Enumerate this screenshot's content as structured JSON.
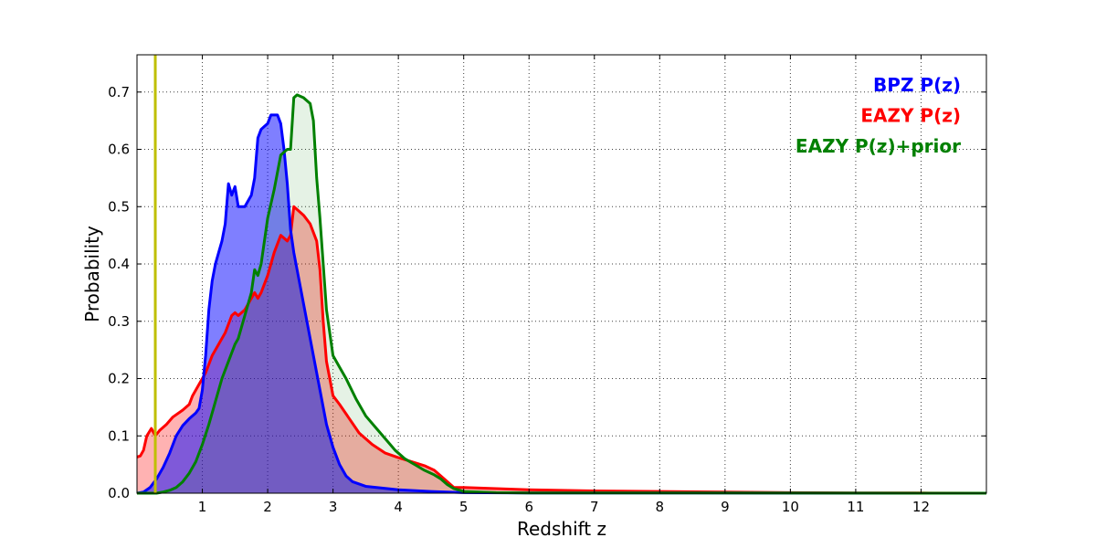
{
  "chart_data": {
    "type": "area",
    "xlabel": "Redshift z",
    "ylabel": "Probability",
    "xlim": [
      0,
      13
    ],
    "ylim": [
      0,
      0.765
    ],
    "xticks": [
      1,
      2,
      3,
      4,
      5,
      6,
      7,
      8,
      9,
      10,
      11,
      12
    ],
    "yticks": [
      0.0,
      0.1,
      0.2,
      0.3,
      0.4,
      0.5,
      0.6,
      0.7
    ],
    "grid": true,
    "legend_position": "top-right",
    "marker_line": {
      "x": 0.28,
      "color": "#bfbf00"
    },
    "series": [
      {
        "name": "BPZ P(z)",
        "color": "#0000ff",
        "fill_opacity": 0.5,
        "points": [
          [
            0.0,
            0.0
          ],
          [
            0.1,
            0.002
          ],
          [
            0.2,
            0.01
          ],
          [
            0.3,
            0.025
          ],
          [
            0.4,
            0.045
          ],
          [
            0.5,
            0.07
          ],
          [
            0.6,
            0.1
          ],
          [
            0.7,
            0.118
          ],
          [
            0.8,
            0.13
          ],
          [
            0.9,
            0.14
          ],
          [
            0.95,
            0.148
          ],
          [
            1.0,
            0.18
          ],
          [
            1.05,
            0.24
          ],
          [
            1.1,
            0.32
          ],
          [
            1.15,
            0.37
          ],
          [
            1.2,
            0.4
          ],
          [
            1.25,
            0.42
          ],
          [
            1.3,
            0.44
          ],
          [
            1.35,
            0.47
          ],
          [
            1.4,
            0.54
          ],
          [
            1.45,
            0.52
          ],
          [
            1.5,
            0.535
          ],
          [
            1.55,
            0.5
          ],
          [
            1.6,
            0.5
          ],
          [
            1.65,
            0.5
          ],
          [
            1.7,
            0.51
          ],
          [
            1.75,
            0.52
          ],
          [
            1.8,
            0.55
          ],
          [
            1.85,
            0.62
          ],
          [
            1.9,
            0.635
          ],
          [
            1.95,
            0.64
          ],
          [
            2.0,
            0.645
          ],
          [
            2.05,
            0.66
          ],
          [
            2.1,
            0.66
          ],
          [
            2.15,
            0.66
          ],
          [
            2.2,
            0.645
          ],
          [
            2.25,
            0.6
          ],
          [
            2.3,
            0.54
          ],
          [
            2.35,
            0.46
          ],
          [
            2.4,
            0.42
          ],
          [
            2.5,
            0.36
          ],
          [
            2.6,
            0.3
          ],
          [
            2.7,
            0.24
          ],
          [
            2.8,
            0.18
          ],
          [
            2.9,
            0.12
          ],
          [
            3.0,
            0.08
          ],
          [
            3.1,
            0.05
          ],
          [
            3.2,
            0.03
          ],
          [
            3.3,
            0.02
          ],
          [
            3.5,
            0.012
          ],
          [
            4.0,
            0.006
          ],
          [
            4.5,
            0.003
          ],
          [
            5.0,
            0.001
          ],
          [
            6.0,
            0.0005
          ],
          [
            13.0,
            0.0
          ]
        ]
      },
      {
        "name": "EAZY P(z)",
        "color": "#ff0000",
        "fill_opacity": 0.3,
        "points": [
          [
            0.0,
            0.063
          ],
          [
            0.05,
            0.065
          ],
          [
            0.1,
            0.075
          ],
          [
            0.15,
            0.1
          ],
          [
            0.22,
            0.113
          ],
          [
            0.28,
            0.1
          ],
          [
            0.35,
            0.11
          ],
          [
            0.45,
            0.12
          ],
          [
            0.55,
            0.133
          ],
          [
            0.7,
            0.145
          ],
          [
            0.8,
            0.155
          ],
          [
            0.85,
            0.17
          ],
          [
            0.95,
            0.19
          ],
          [
            1.05,
            0.21
          ],
          [
            1.15,
            0.24
          ],
          [
            1.25,
            0.26
          ],
          [
            1.35,
            0.28
          ],
          [
            1.45,
            0.31
          ],
          [
            1.5,
            0.315
          ],
          [
            1.55,
            0.31
          ],
          [
            1.65,
            0.32
          ],
          [
            1.75,
            0.34
          ],
          [
            1.8,
            0.35
          ],
          [
            1.85,
            0.34
          ],
          [
            1.9,
            0.35
          ],
          [
            2.0,
            0.38
          ],
          [
            2.1,
            0.42
          ],
          [
            2.2,
            0.45
          ],
          [
            2.25,
            0.445
          ],
          [
            2.3,
            0.44
          ],
          [
            2.35,
            0.45
          ],
          [
            2.4,
            0.5
          ],
          [
            2.45,
            0.495
          ],
          [
            2.55,
            0.485
          ],
          [
            2.65,
            0.47
          ],
          [
            2.75,
            0.44
          ],
          [
            2.8,
            0.39
          ],
          [
            2.85,
            0.3
          ],
          [
            2.9,
            0.23
          ],
          [
            3.0,
            0.17
          ],
          [
            3.1,
            0.155
          ],
          [
            3.25,
            0.13
          ],
          [
            3.4,
            0.105
          ],
          [
            3.6,
            0.085
          ],
          [
            3.8,
            0.07
          ],
          [
            4.0,
            0.062
          ],
          [
            4.2,
            0.055
          ],
          [
            4.4,
            0.048
          ],
          [
            4.55,
            0.04
          ],
          [
            4.7,
            0.025
          ],
          [
            4.85,
            0.01
          ],
          [
            5.0,
            0.01
          ],
          [
            5.5,
            0.008
          ],
          [
            6.0,
            0.006
          ],
          [
            7.0,
            0.004
          ],
          [
            8.0,
            0.003
          ],
          [
            9.0,
            0.002
          ],
          [
            10.0,
            0.001
          ],
          [
            11.0,
            0.0005
          ],
          [
            12.0,
            0.0003
          ],
          [
            13.0,
            0.0
          ]
        ]
      },
      {
        "name": "EAZY P(z)+prior",
        "color": "#008000",
        "fill_opacity": 0.1,
        "points": [
          [
            0.0,
            0.0
          ],
          [
            0.3,
            0.0
          ],
          [
            0.4,
            0.002
          ],
          [
            0.5,
            0.005
          ],
          [
            0.6,
            0.01
          ],
          [
            0.7,
            0.02
          ],
          [
            0.8,
            0.035
          ],
          [
            0.9,
            0.055
          ],
          [
            1.0,
            0.085
          ],
          [
            1.1,
            0.12
          ],
          [
            1.2,
            0.16
          ],
          [
            1.3,
            0.2
          ],
          [
            1.4,
            0.23
          ],
          [
            1.5,
            0.26
          ],
          [
            1.55,
            0.27
          ],
          [
            1.65,
            0.31
          ],
          [
            1.75,
            0.35
          ],
          [
            1.8,
            0.39
          ],
          [
            1.85,
            0.38
          ],
          [
            1.9,
            0.4
          ],
          [
            2.0,
            0.48
          ],
          [
            2.1,
            0.53
          ],
          [
            2.2,
            0.59
          ],
          [
            2.3,
            0.6
          ],
          [
            2.35,
            0.6
          ],
          [
            2.4,
            0.69
          ],
          [
            2.45,
            0.695
          ],
          [
            2.55,
            0.69
          ],
          [
            2.65,
            0.68
          ],
          [
            2.7,
            0.65
          ],
          [
            2.75,
            0.55
          ],
          [
            2.8,
            0.48
          ],
          [
            2.85,
            0.4
          ],
          [
            2.9,
            0.32
          ],
          [
            3.0,
            0.24
          ],
          [
            3.1,
            0.22
          ],
          [
            3.2,
            0.2
          ],
          [
            3.35,
            0.165
          ],
          [
            3.5,
            0.135
          ],
          [
            3.65,
            0.115
          ],
          [
            3.8,
            0.095
          ],
          [
            3.95,
            0.075
          ],
          [
            4.1,
            0.06
          ],
          [
            4.25,
            0.05
          ],
          [
            4.4,
            0.04
          ],
          [
            4.55,
            0.032
          ],
          [
            4.65,
            0.025
          ],
          [
            4.75,
            0.015
          ],
          [
            4.85,
            0.008
          ],
          [
            5.0,
            0.003
          ],
          [
            5.5,
            0.001
          ],
          [
            6.0,
            0.0005
          ],
          [
            13.0,
            0.0
          ]
        ]
      }
    ]
  }
}
